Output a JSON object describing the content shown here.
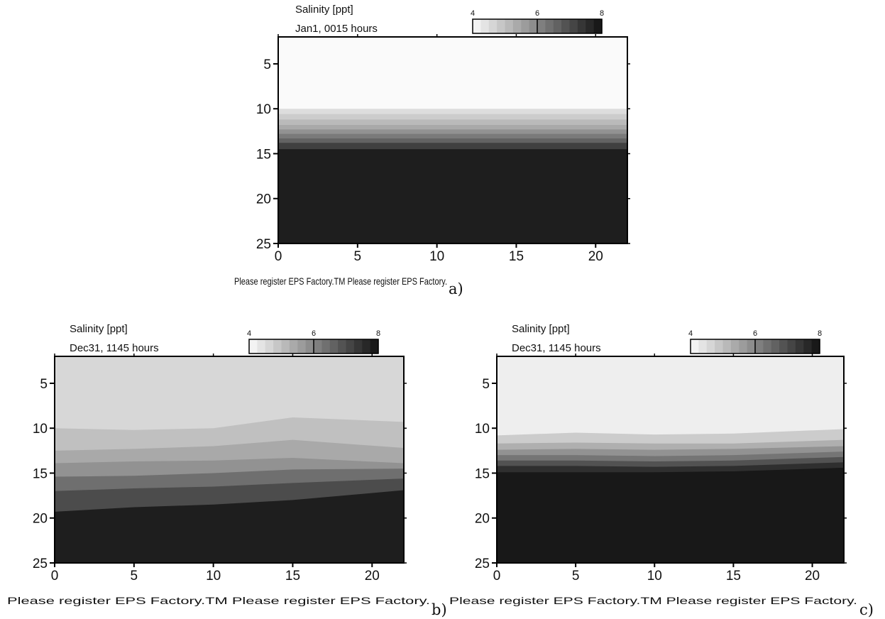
{
  "colorbar": {
    "min": 4,
    "max": 8,
    "levels": 16,
    "labels": [
      "4",
      "6",
      "8"
    ]
  },
  "chart_data": [
    {
      "type": "heatmap",
      "panel_label": "a)",
      "title": "Salinity [ppt]",
      "subtitle": "Jan1, 0015 hours",
      "xlabel": "Please register EPS Factory.TM  Please register EPS Factory.",
      "xlim": [
        0,
        22
      ],
      "ylim": [
        2,
        25
      ],
      "y_inverted": true,
      "x_ticks": [
        "0",
        "5",
        "10",
        "15",
        "20"
      ],
      "y_ticks": [
        "5",
        "10",
        "15",
        "20",
        "25"
      ],
      "contour_x": [
        0,
        5,
        10,
        15,
        22
      ],
      "layers": [
        {
          "value": 4.0,
          "top": [
            2,
            2,
            2,
            2,
            2
          ]
        },
        {
          "value": 4.5,
          "top": [
            10,
            10,
            10,
            10,
            10
          ]
        },
        {
          "value": 4.8,
          "top": [
            10.6,
            10.6,
            10.6,
            10.6,
            10.6
          ]
        },
        {
          "value": 5.1,
          "top": [
            11.2,
            11.2,
            11.2,
            11.2,
            11.2
          ]
        },
        {
          "value": 5.4,
          "top": [
            11.8,
            11.8,
            11.8,
            11.8,
            11.8
          ]
        },
        {
          "value": 5.8,
          "top": [
            12.3,
            12.3,
            12.3,
            12.3,
            12.3
          ]
        },
        {
          "value": 6.2,
          "top": [
            12.8,
            12.8,
            12.8,
            12.8,
            12.8
          ]
        },
        {
          "value": 6.6,
          "top": [
            13.3,
            13.3,
            13.3,
            13.3,
            13.3
          ]
        },
        {
          "value": 7.2,
          "top": [
            13.8,
            13.8,
            13.8,
            13.8,
            13.8
          ]
        },
        {
          "value": 7.8,
          "top": [
            14.5,
            14.5,
            14.5,
            14.5,
            14.5
          ]
        }
      ]
    },
    {
      "type": "heatmap",
      "panel_label": "b)",
      "title": "Salinity [ppt]",
      "subtitle": "Dec31, 1145 hours",
      "xlabel": "Please register EPS Factory.TM  Please register EPS Factory.",
      "xlim": [
        0,
        22
      ],
      "ylim": [
        2,
        25
      ],
      "y_inverted": true,
      "x_ticks": [
        "0",
        "5",
        "10",
        "15",
        "20"
      ],
      "y_ticks": [
        "5",
        "10",
        "15",
        "20",
        "25"
      ],
      "contour_x": [
        0,
        5,
        10,
        15,
        22
      ],
      "layers": [
        {
          "value": 4.6,
          "top": [
            2,
            2,
            2,
            2,
            2
          ]
        },
        {
          "value": 5.0,
          "top": [
            10,
            10.2,
            10,
            8.8,
            9.3
          ]
        },
        {
          "value": 5.4,
          "top": [
            12.5,
            12.3,
            12.0,
            11.3,
            12.2
          ]
        },
        {
          "value": 5.8,
          "top": [
            13.9,
            13.7,
            13.6,
            13.3,
            13.9
          ]
        },
        {
          "value": 6.4,
          "top": [
            15.4,
            15.3,
            15.0,
            14.6,
            14.5
          ]
        },
        {
          "value": 7.0,
          "top": [
            17.0,
            16.7,
            16.5,
            16.1,
            15.6
          ]
        },
        {
          "value": 7.8,
          "top": [
            19.3,
            18.8,
            18.5,
            18.0,
            16.9
          ]
        }
      ]
    },
    {
      "type": "heatmap",
      "panel_label": "c)",
      "title": "Salinity [ppt]",
      "subtitle": "Dec31, 1145 hours",
      "xlabel": "Please register EPS Factory.TM  Please register EPS Factory.",
      "xlim": [
        0,
        22
      ],
      "ylim": [
        2,
        25
      ],
      "y_inverted": true,
      "x_ticks": [
        "0",
        "5",
        "10",
        "15",
        "20"
      ],
      "y_ticks": [
        "5",
        "10",
        "15",
        "20",
        "25"
      ],
      "contour_x": [
        0,
        5,
        10,
        15,
        22
      ],
      "layers": [
        {
          "value": 4.2,
          "top": [
            2,
            2,
            2,
            2,
            2
          ]
        },
        {
          "value": 4.8,
          "top": [
            10.8,
            10.5,
            10.7,
            10.6,
            10.1
          ]
        },
        {
          "value": 5.3,
          "top": [
            11.7,
            11.6,
            11.7,
            11.7,
            11.3
          ]
        },
        {
          "value": 5.8,
          "top": [
            12.4,
            12.3,
            12.4,
            12.3,
            12.0
          ]
        },
        {
          "value": 6.3,
          "top": [
            13.0,
            13.0,
            13.1,
            13.0,
            12.6
          ]
        },
        {
          "value": 6.9,
          "top": [
            13.6,
            13.6,
            13.7,
            13.6,
            13.2
          ]
        },
        {
          "value": 7.5,
          "top": [
            14.2,
            14.2,
            14.3,
            14.2,
            13.8
          ]
        },
        {
          "value": 7.9,
          "top": [
            14.9,
            14.9,
            14.9,
            14.8,
            14.4
          ]
        }
      ]
    }
  ]
}
